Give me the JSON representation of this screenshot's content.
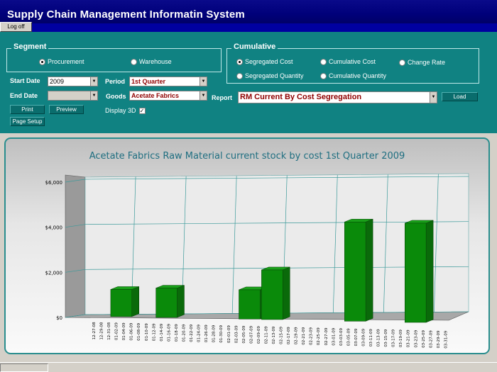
{
  "app": {
    "title": "Supply Chain Management Informatin System",
    "logoff_label": "Log off"
  },
  "segment": {
    "legend": "Segment",
    "options": [
      {
        "label": "Procurement",
        "selected": true
      },
      {
        "label": "Warehouse",
        "selected": false
      }
    ]
  },
  "cumulative": {
    "legend": "Cumulative",
    "options": [
      {
        "label": "Segregated Cost",
        "selected": true
      },
      {
        "label": "Cumulative Cost",
        "selected": false
      },
      {
        "label": "Change Rate",
        "selected": false
      },
      {
        "label": "Segregated Quantity",
        "selected": false
      },
      {
        "label": "Cumulative Quantity",
        "selected": false
      }
    ]
  },
  "filters": {
    "start_date_label": "Start Date",
    "start_date_value": "2009",
    "end_date_label": "End Date",
    "end_date_value": "",
    "period_label": "Period",
    "period_value": "1st Quarter",
    "goods_label": "Goods",
    "goods_value": "Acetate Fabrics",
    "report_label": "Report",
    "report_value": "RM Current By Cost Segregation",
    "display3d_label": "Display 3D",
    "display3d_checked": true
  },
  "buttons": {
    "print": "Print",
    "preview": "Preview",
    "page_setup": "Page Setup",
    "load": "Load"
  },
  "chart_data": {
    "type": "bar",
    "title": "Acetate Fabrics Raw Material current stock by cost 1st Quarter 2009",
    "xlabel": "",
    "ylabel": "",
    "ylim": [
      0,
      6000
    ],
    "y_ticks": [
      "$0",
      "$2,000",
      "$4,000",
      "$6,000"
    ],
    "grid": true,
    "three_d": true,
    "bar_color": "#0a8a0a",
    "categories": [
      "12-27-08",
      "12-29-08",
      "12-31-08",
      "01-02-09",
      "01-04-09",
      "01-06-09",
      "01-08-09",
      "01-10-09",
      "01-12-09",
      "01-14-09",
      "01-16-09",
      "01-18-09",
      "01-20-09",
      "01-22-09",
      "01-24-09",
      "01-26-09",
      "01-28-09",
      "01-30-09",
      "02-01-09",
      "02-03-09",
      "02-05-09",
      "02-07-09",
      "02-09-09",
      "02-11-09",
      "02-13-09",
      "02-15-09",
      "02-17-09",
      "02-19-09",
      "02-21-09",
      "02-23-09",
      "02-25-09",
      "02-27-09",
      "03-01-09",
      "03-03-09",
      "03-05-09",
      "03-07-09",
      "03-09-09",
      "03-11-09",
      "03-13-09",
      "03-15-09",
      "03-17-09",
      "03-19-09",
      "03-21-09",
      "03-23-09",
      "03-25-09",
      "03-27-09",
      "03-29-09",
      "03-31-09"
    ],
    "values": [
      0,
      0,
      0,
      1200,
      1200,
      1200,
      0,
      0,
      0,
      1300,
      1300,
      1300,
      0,
      0,
      0,
      0,
      0,
      0,
      0,
      0,
      1300,
      1300,
      1300,
      2200,
      2200,
      2200,
      0,
      0,
      0,
      0,
      0,
      0,
      0,
      0,
      4400,
      4400,
      4400,
      0,
      0,
      0,
      0,
      0,
      4400,
      4400,
      4400,
      0,
      0,
      0
    ]
  }
}
